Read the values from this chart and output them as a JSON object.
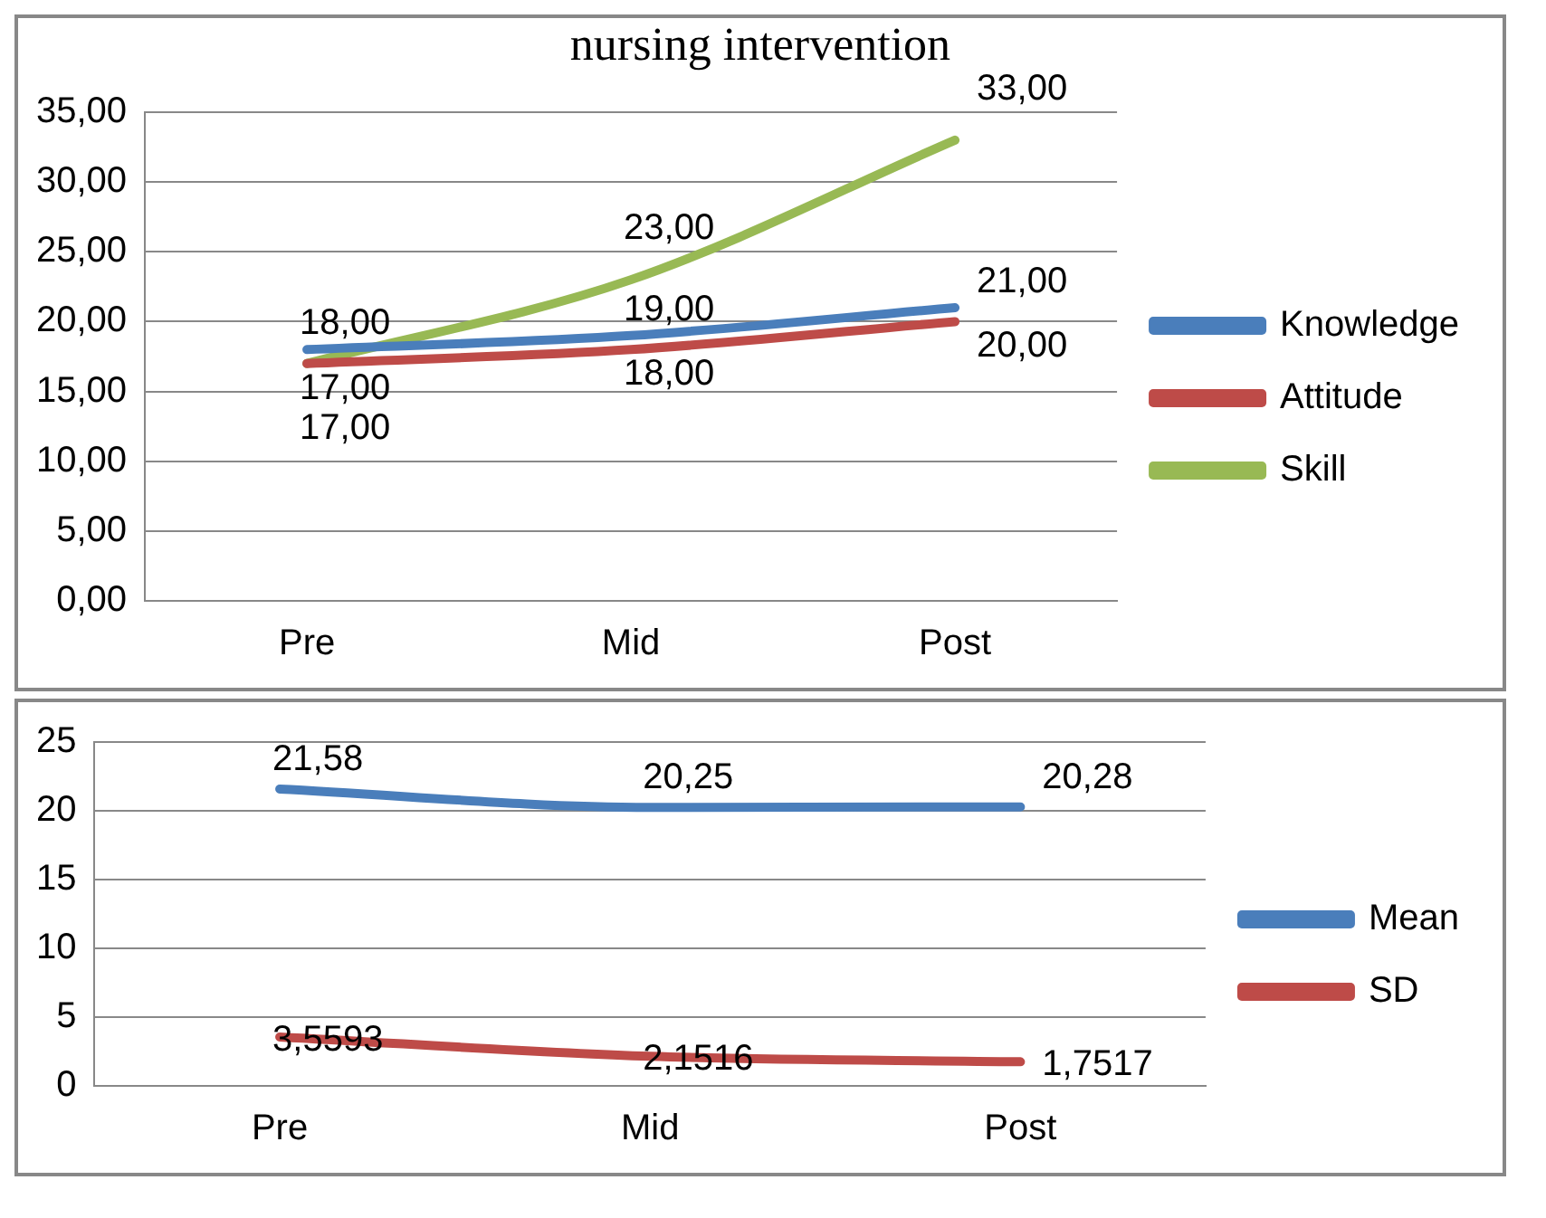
{
  "chart_data": [
    {
      "type": "line",
      "title": "nursing intervention",
      "categories": [
        "Pre",
        "Mid",
        "Post"
      ],
      "series": [
        {
          "name": "Knowledge",
          "color": "#4a7ebb",
          "values": [
            18,
            19,
            21
          ],
          "value_labels": [
            "18,00",
            "19,00",
            "21,00"
          ]
        },
        {
          "name": "Attitude",
          "color": "#be4b48",
          "values": [
            17,
            18,
            20
          ],
          "value_labels": [
            "17,00",
            "18,00",
            "20,00"
          ]
        },
        {
          "name": "Skill",
          "color": "#98b954",
          "values": [
            17,
            23,
            33
          ],
          "value_labels": [
            "17,00",
            "23,00",
            "33,00"
          ]
        }
      ],
      "ylim": [
        0,
        35
      ],
      "yticks": [
        {
          "value": 0,
          "label": "0,00"
        },
        {
          "value": 5,
          "label": "5,00"
        },
        {
          "value": 10,
          "label": "10,00"
        },
        {
          "value": 15,
          "label": "15,00"
        },
        {
          "value": 20,
          "label": "20,00"
        },
        {
          "value": 25,
          "label": "25,00"
        },
        {
          "value": 30,
          "label": "30,00"
        },
        {
          "value": 35,
          "label": "35,00"
        }
      ],
      "grid": "y",
      "legend": "right",
      "marker": "none"
    },
    {
      "type": "line",
      "categories": [
        "Pre",
        "Mid",
        "Post"
      ],
      "series": [
        {
          "name": "Mean",
          "color": "#4a7ebb",
          "values": [
            21.58,
            20.25,
            20.28
          ],
          "value_labels": [
            "21,58",
            "20,25",
            "20,28"
          ]
        },
        {
          "name": "SD",
          "color": "#be4b48",
          "values": [
            3.5593,
            2.1516,
            1.7517
          ],
          "value_labels": [
            "3,5593",
            "2,1516",
            "1,7517"
          ]
        }
      ],
      "ylim": [
        0,
        25
      ],
      "yticks": [
        0,
        5,
        10,
        15,
        20,
        25
      ],
      "grid": "y",
      "legend": "right",
      "marker": "none"
    }
  ]
}
